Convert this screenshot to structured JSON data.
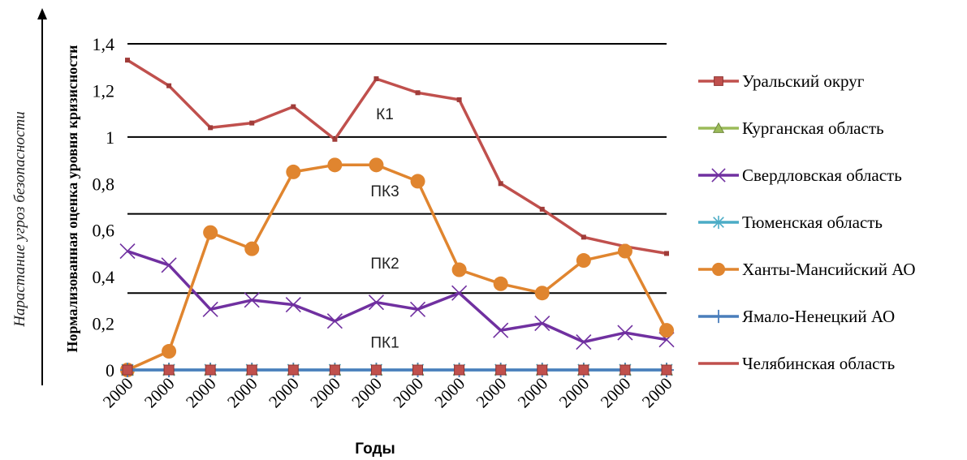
{
  "chart_data": {
    "type": "line",
    "side_label": "Нарастание угроз безопасности",
    "ylabel": "Нормализованная оценка уровня кризисности",
    "xlabel": "Годы",
    "ylim": [
      0,
      1.4
    ],
    "yticks": [
      "0",
      "0,2",
      "0,4",
      "0,6",
      "0,8",
      "1",
      "1,2",
      "1,4"
    ],
    "categories": [
      "2000",
      "2000",
      "2000",
      "2000",
      "2000",
      "2000",
      "2000",
      "2000",
      "2000",
      "2000",
      "2000",
      "2000",
      "2000",
      "2000"
    ],
    "zones": [
      {
        "label": "К1",
        "y": 1.1
      },
      {
        "label": "ПК3",
        "y": 0.77
      },
      {
        "label": "ПК2",
        "y": 0.46
      },
      {
        "label": "ПК1",
        "y": 0.12
      }
    ],
    "zone_lines": [
      1.4,
      1.0,
      0.67,
      0.33
    ],
    "series": [
      {
        "name": "Уральский округ",
        "color": "#c0504d",
        "marker": "square",
        "line": false,
        "values": [
          0,
          0,
          0,
          0,
          0,
          0,
          0,
          0,
          0,
          0,
          0,
          0,
          0,
          0
        ]
      },
      {
        "name": "Курганская область",
        "color": "#9bbb59",
        "marker": "triangle",
        "line": false,
        "values": [
          0,
          0,
          0,
          0,
          0,
          0,
          0,
          0,
          0,
          0,
          0,
          0,
          0,
          0
        ]
      },
      {
        "name": "Свердловская область",
        "color": "#7030a0",
        "marker": "x",
        "line": true,
        "values": [
          0.51,
          0.45,
          0.26,
          0.3,
          0.28,
          0.21,
          0.29,
          0.26,
          0.33,
          0.17,
          0.2,
          0.12,
          0.16,
          0.13
        ]
      },
      {
        "name": "Тюменская область",
        "color": "#4bacc6",
        "marker": "star",
        "line": true,
        "values": [
          0,
          0,
          0,
          0,
          0,
          0,
          0,
          0,
          0,
          0,
          0,
          0,
          0,
          0
        ]
      },
      {
        "name": "Ханты-Мансийский АО",
        "color": "#e0852f",
        "marker": "circle",
        "line": true,
        "values": [
          0,
          0.08,
          0.59,
          0.52,
          0.85,
          0.88,
          0.88,
          0.81,
          0.43,
          0.37,
          0.33,
          0.47,
          0.51,
          0.17
        ]
      },
      {
        "name": "Ямало-Ненецкий АО",
        "color": "#4a7ebb",
        "marker": "plus",
        "line": true,
        "values": [
          0,
          0,
          0,
          0,
          0,
          0,
          0,
          0,
          0,
          0,
          0,
          0,
          0,
          0
        ]
      },
      {
        "name": "Челябинская область",
        "color": "#c0504d",
        "marker": "none",
        "line": true,
        "values": [
          1.33,
          1.22,
          1.04,
          1.06,
          1.13,
          0.99,
          1.25,
          1.19,
          1.16,
          0.8,
          0.69,
          0.57,
          0.53,
          0.5
        ]
      }
    ],
    "legend_position": "right",
    "grid": false
  }
}
